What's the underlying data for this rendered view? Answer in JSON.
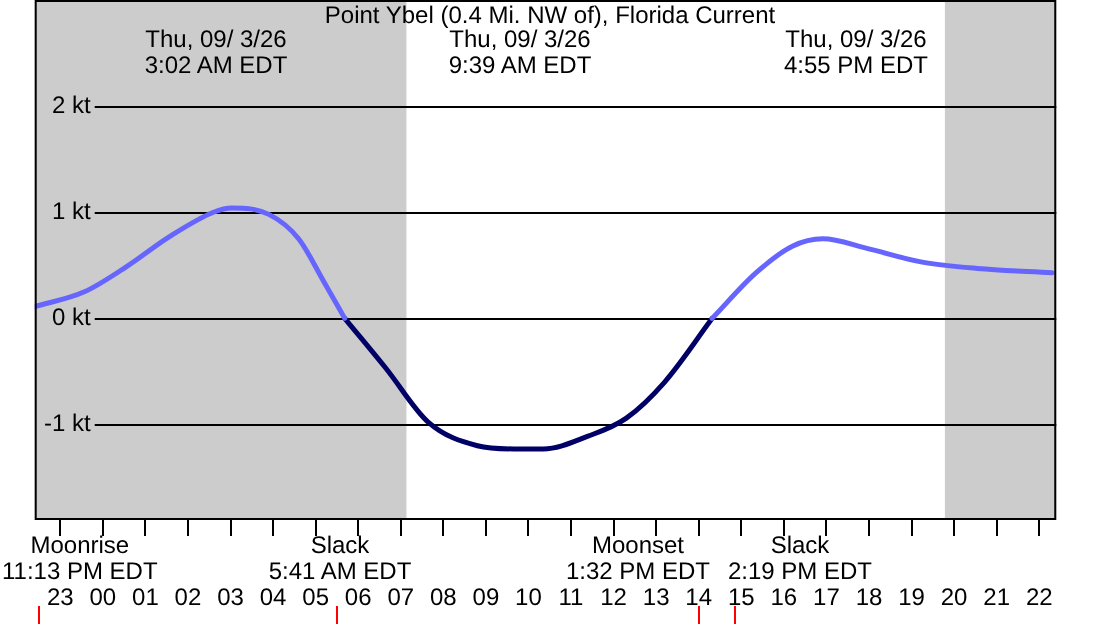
{
  "chart_data": {
    "type": "line",
    "title": "Point Ybel (0.4 Mi. NW of), Florida Current",
    "series": [
      {
        "color": "#6666ff",
        "x": [
          "--09-02T22:24",
          "--09-02T23:34",
          "--09-03T00:34",
          "--09-03T01:34",
          "--09-03T02:36",
          "--09-03T03:02",
          "--09-03T03:54",
          "--09-03T04:36",
          "--09-03T05:12",
          "--09-03T05:41",
          "--09-03T09:39",
          "--09-03T14:19",
          "--09-03T15:21",
          "--09-03T16:12",
          "--09-03T16:55",
          "--09-03T17:57",
          "--09-03T19:15",
          "--09-03T20:33",
          "--09-03T22:18"
        ],
        "values": [
          0.11,
          0.25,
          0.49,
          0.77,
          1.0,
          1.04,
          0.98,
          0.75,
          0.34,
          0,
          null,
          0,
          0.43,
          0.68,
          0.75,
          0.66,
          0.53,
          0.47,
          0.43
        ]
      },
      {
        "color": "#000066",
        "x": [
          "--09-03T05:41",
          "--09-03T06:39",
          "--09-03T07:39",
          "--09-03T08:48",
          "--09-03T09:39",
          "--09-03T10:21",
          "--09-03T11:24",
          "--09-03T12:18",
          "--09-03T13:12",
          "--09-03T14:19"
        ],
        "values": [
          0,
          -0.47,
          -0.98,
          -1.2,
          -1.23,
          -1.23,
          -1.11,
          -0.94,
          -0.6,
          0
        ]
      }
    ],
    "xlim": [
      "--09-02T22:24",
      "--09-03T22:24"
    ],
    "xticks": [
      {
        "value": "--09-02T23:00",
        "label": "23"
      },
      {
        "value": "--09-03T00:00",
        "label": "00"
      },
      {
        "value": "--09-03T01:00",
        "label": "01"
      },
      {
        "value": "--09-03T02:00",
        "label": "02"
      },
      {
        "value": "--09-03T03:00",
        "label": "03"
      },
      {
        "value": "--09-03T04:00",
        "label": "04"
      },
      {
        "value": "--09-03T05:00",
        "label": "05"
      },
      {
        "value": "--09-03T06:00",
        "label": "06"
      },
      {
        "value": "--09-03T07:00",
        "label": "07"
      },
      {
        "value": "--09-03T08:00",
        "label": "08"
      },
      {
        "value": "--09-03T09:00",
        "label": "09"
      },
      {
        "value": "--09-03T10:00",
        "label": "10"
      },
      {
        "value": "--09-03T11:00",
        "label": "11"
      },
      {
        "value": "--09-03T12:00",
        "label": "12"
      },
      {
        "value": "--09-03T13:00",
        "label": "13"
      },
      {
        "value": "--09-03T14:00",
        "label": "14"
      },
      {
        "value": "--09-03T15:00",
        "label": "15"
      },
      {
        "value": "--09-03T16:00",
        "label": "16"
      },
      {
        "value": "--09-03T17:00",
        "label": "17"
      },
      {
        "value": "--09-03T18:00",
        "label": "18"
      },
      {
        "value": "--09-03T19:00",
        "label": "19"
      },
      {
        "value": "--09-03T20:00",
        "label": "20"
      },
      {
        "value": "--09-03T21:00",
        "label": "21"
      },
      {
        "value": "--09-03T22:00",
        "label": "22"
      }
    ],
    "ylim": [
      -1.9,
      3
    ],
    "yticks": [
      {
        "value": -1,
        "label": "-1 kt"
      },
      {
        "value": 0,
        "label": "0 kt"
      },
      {
        "value": 1,
        "label": "1 kt"
      },
      {
        "value": 2,
        "label": "2 kt"
      }
    ],
    "grid": "y",
    "bands": [
      {
        "axis": "x",
        "from": "--09-02T22:24",
        "to": "--09-03T07:08",
        "color": "#cccccc"
      },
      {
        "axis": "x",
        "from": "--09-03T19:47",
        "to": "--09-03T22:24",
        "color": "#cccccc"
      }
    ],
    "annotations": [
      "Thu, 09/ 3/26\n3:02 AM EDT",
      "Thu, 09/ 3/26\n9:39 AM EDT",
      "Thu, 09/ 3/26\n4:55 PM EDT",
      "Moonrise\n11:13 PM EDT",
      "Slack\n5:41 AM EDT",
      "Moonset\n1:32 PM EDT",
      "Slack\n2:19 PM EDT"
    ]
  }
}
